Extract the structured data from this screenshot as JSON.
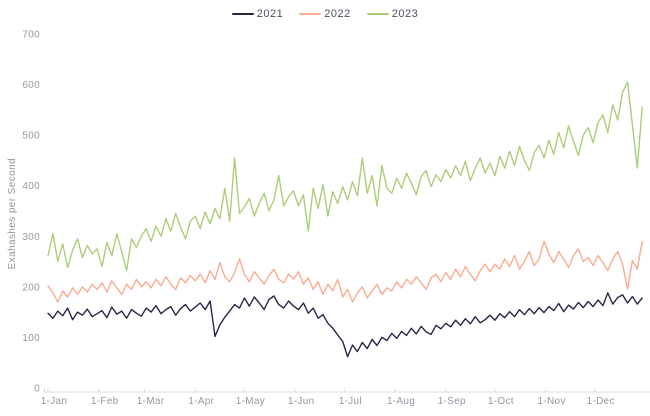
{
  "chart_data": {
    "type": "line",
    "title": "",
    "xlabel": "",
    "ylabel": "Exahashes per Second",
    "ylim": [
      0,
      700
    ],
    "yticks": [
      0,
      100,
      200,
      300,
      400,
      500,
      600,
      700
    ],
    "grid": false,
    "legend_position": "top-center",
    "x_unit": "day-of-year",
    "x_step_days": 3,
    "x_domain": [
      0,
      365
    ],
    "xticks": {
      "days": [
        0,
        31,
        59,
        90,
        120,
        151,
        181,
        212,
        243,
        273,
        304,
        334
      ],
      "labels": [
        "1-Jan",
        "1-Feb",
        "1-Mar",
        "1-Apr",
        "1-May",
        "1-Jun",
        "1-Jul",
        "1-Aug",
        "1-Sep",
        "1-Oct",
        "1-Nov",
        "1-Dec"
      ]
    },
    "colors": {
      "axis": "#dcdcd9",
      "tick_text": "#9298a3",
      "legend_text": "#4c4f5e"
    },
    "series": [
      {
        "name": "2021",
        "color": "#2b2648",
        "values": [
          148,
          138,
          152,
          143,
          158,
          135,
          150,
          144,
          156,
          141,
          147,
          153,
          139,
          160,
          146,
          152,
          138,
          155,
          148,
          142,
          158,
          150,
          163,
          147,
          155,
          161,
          144,
          157,
          165,
          152,
          160,
          168,
          155,
          172,
          102,
          125,
          140,
          152,
          165,
          158,
          178,
          162,
          180,
          168,
          155,
          175,
          182,
          165,
          158,
          172,
          162,
          155,
          168,
          148,
          158,
          138,
          145,
          128,
          118,
          105,
          92,
          62,
          85,
          72,
          90,
          78,
          96,
          84,
          100,
          94,
          108,
          98,
          112,
          104,
          118,
          107,
          122,
          111,
          106,
          124,
          117,
          128,
          121,
          134,
          124,
          137,
          127,
          141,
          129,
          135,
          144,
          134,
          147,
          139,
          151,
          141,
          155,
          145,
          157,
          147,
          159,
          149,
          161,
          153,
          167,
          151,
          164,
          156,
          169,
          159,
          171,
          161,
          174,
          163,
          188,
          166,
          179,
          184,
          168,
          181,
          166,
          178
        ]
      },
      {
        "name": "2022",
        "color": "#f9ab92",
        "values": [
          202,
          188,
          170,
          192,
          180,
          198,
          185,
          200,
          190,
          205,
          195,
          208,
          190,
          212,
          198,
          185,
          205,
          195,
          215,
          200,
          210,
          198,
          215,
          202,
          220,
          205,
          195,
          218,
          208,
          222,
          212,
          225,
          208,
          232,
          215,
          248,
          220,
          210,
          228,
          255,
          225,
          210,
          230,
          218,
          205,
          222,
          235,
          215,
          208,
          225,
          215,
          230,
          205,
          218,
          195,
          210,
          185,
          205,
          192,
          215,
          180,
          195,
          170,
          188,
          200,
          178,
          192,
          205,
          185,
          198,
          192,
          210,
          198,
          215,
          205,
          220,
          208,
          195,
          218,
          225,
          210,
          228,
          215,
          235,
          220,
          240,
          225,
          212,
          232,
          245,
          230,
          245,
          235,
          255,
          240,
          262,
          235,
          250,
          270,
          242,
          255,
          290,
          265,
          248,
          270,
          255,
          238,
          262,
          275,
          250,
          258,
          242,
          262,
          248,
          232,
          255,
          270,
          245,
          196,
          252,
          235,
          290
        ]
      },
      {
        "name": "2023",
        "color": "#abce7b",
        "values": [
          262,
          305,
          250,
          285,
          238,
          272,
          295,
          258,
          282,
          265,
          275,
          240,
          288,
          262,
          305,
          270,
          232,
          295,
          278,
          300,
          315,
          290,
          320,
          300,
          335,
          310,
          345,
          318,
          295,
          330,
          340,
          315,
          348,
          325,
          355,
          335,
          395,
          330,
          455,
          345,
          358,
          375,
          340,
          365,
          385,
          350,
          372,
          420,
          360,
          378,
          390,
          360,
          382,
          310,
          395,
          355,
          402,
          340,
          388,
          365,
          398,
          372,
          408,
          380,
          455,
          385,
          420,
          360,
          440,
          395,
          385,
          415,
          395,
          425,
          405,
          382,
          418,
          430,
          398,
          422,
          408,
          432,
          415,
          440,
          420,
          448,
          410,
          435,
          455,
          425,
          445,
          420,
          458,
          435,
          468,
          440,
          478,
          450,
          430,
          465,
          480,
          455,
          490,
          462,
          505,
          475,
          518,
          488,
          460,
          500,
          515,
          485,
          525,
          540,
          505,
          560,
          530,
          585,
          605,
          520,
          435,
          555
        ]
      }
    ]
  }
}
